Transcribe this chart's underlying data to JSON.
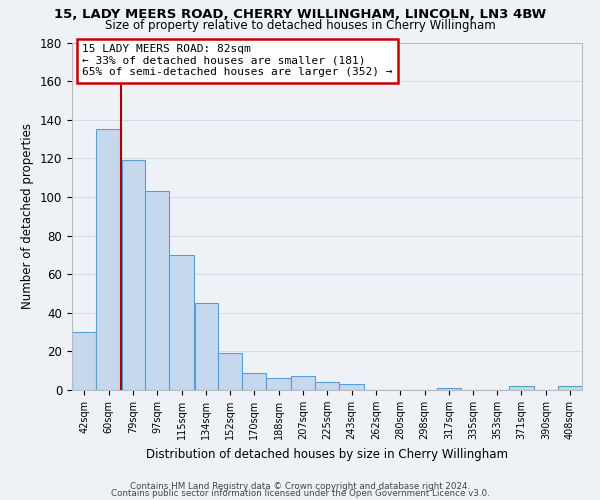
{
  "title1": "15, LADY MEERS ROAD, CHERRY WILLINGHAM, LINCOLN, LN3 4BW",
  "title2": "Size of property relative to detached houses in Cherry Willingham",
  "xlabel": "Distribution of detached houses by size in Cherry Willingham",
  "ylabel": "Number of detached properties",
  "bar_color": "#c5d8ee",
  "bar_edge_color": "#5a9fd4",
  "grid_color": "#d0dce8",
  "bin_labels": [
    "42sqm",
    "60sqm",
    "79sqm",
    "97sqm",
    "115sqm",
    "134sqm",
    "152sqm",
    "170sqm",
    "188sqm",
    "207sqm",
    "225sqm",
    "243sqm",
    "262sqm",
    "280sqm",
    "298sqm",
    "317sqm",
    "335sqm",
    "353sqm",
    "371sqm",
    "390sqm",
    "408sqm"
  ],
  "bar_heights": [
    30,
    135,
    119,
    103,
    70,
    45,
    19,
    9,
    6,
    7,
    4,
    3,
    0,
    0,
    0,
    1,
    0,
    0,
    2,
    0,
    2
  ],
  "ylim": [
    0,
    180
  ],
  "yticks": [
    0,
    20,
    40,
    60,
    80,
    100,
    120,
    140,
    160,
    180
  ],
  "vline_color": "#aa0000",
  "annotation_title": "15 LADY MEERS ROAD: 82sqm",
  "annotation_line1": "← 33% of detached houses are smaller (181)",
  "annotation_line2": "65% of semi-detached houses are larger (352) →",
  "annotation_box_color": "#ffffff",
  "annotation_box_edge": "#cc0000",
  "footer1": "Contains HM Land Registry data © Crown copyright and database right 2024.",
  "footer2": "Contains public sector information licensed under the Open Government Licence v3.0.",
  "background_color": "#eef2f7"
}
